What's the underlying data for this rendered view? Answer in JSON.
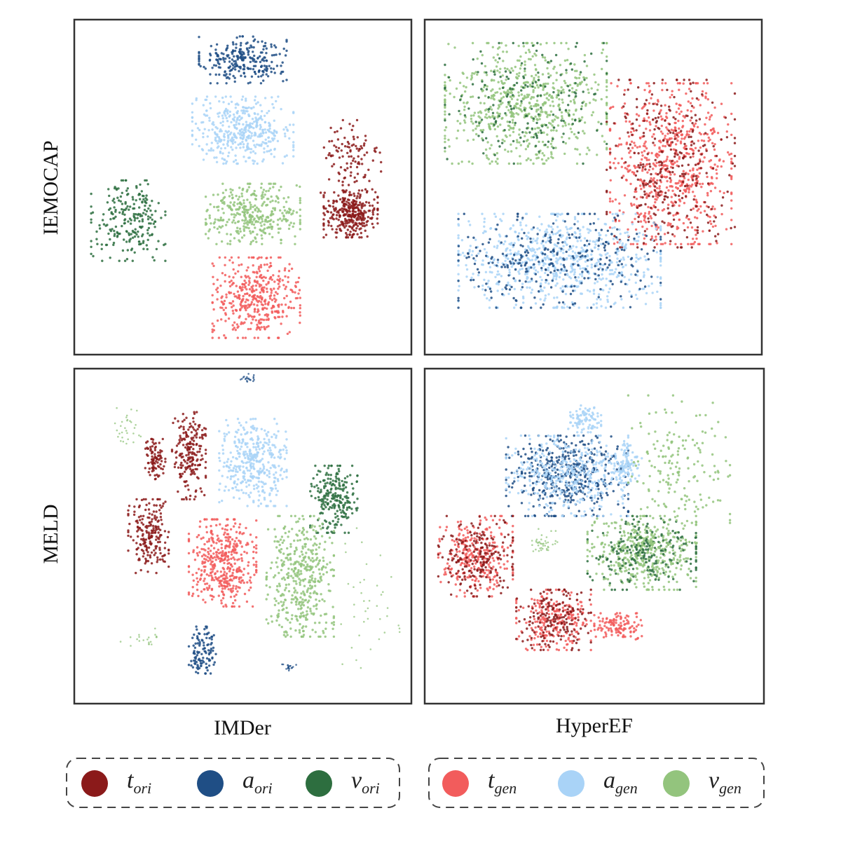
{
  "chart_data": {
    "type": "scatter",
    "title": "",
    "xlabel": "",
    "ylabel": "",
    "row_labels": [
      "IEMOCAP",
      "MELD"
    ],
    "column_labels": [
      "IMDer",
      "HyperEF"
    ],
    "legend_groups": [
      {
        "items": [
          {
            "base": "t",
            "sub": "ori",
            "color": "#8b1a1a"
          },
          {
            "base": "a",
            "sub": "ori",
            "color": "#1f4e85"
          },
          {
            "base": "v",
            "sub": "ori",
            "color": "#2d6e3f"
          }
        ]
      },
      {
        "items": [
          {
            "base": "t",
            "sub": "gen",
            "color": "#f25c5c"
          },
          {
            "base": "a",
            "sub": "gen",
            "color": "#a9d3f7"
          },
          {
            "base": "v",
            "sub": "gen",
            "color": "#93c47d"
          }
        ]
      }
    ],
    "axis_range": {
      "x": [
        0,
        1
      ],
      "y": [
        0,
        1
      ]
    },
    "grid": false,
    "legend_position": "bottom",
    "panels": [
      {
        "row": "IEMOCAP",
        "column": "IMDer",
        "clusters": [
          {
            "series": "a_ori",
            "cx": 0.5,
            "cy": 0.88,
            "rx": 0.13,
            "ry": 0.07,
            "n": 260
          },
          {
            "series": "a_gen",
            "cx": 0.5,
            "cy": 0.67,
            "rx": 0.15,
            "ry": 0.1,
            "n": 420
          },
          {
            "series": "v_gen",
            "cx": 0.53,
            "cy": 0.42,
            "rx": 0.14,
            "ry": 0.09,
            "n": 360
          },
          {
            "series": "t_gen",
            "cx": 0.54,
            "cy": 0.17,
            "rx": 0.13,
            "ry": 0.12,
            "n": 420
          },
          {
            "series": "t_ori",
            "cx": 0.82,
            "cy": 0.42,
            "rx": 0.08,
            "ry": 0.07,
            "n": 320
          },
          {
            "series": "t_ori",
            "cx": 0.82,
            "cy": 0.58,
            "rx": 0.09,
            "ry": 0.12,
            "n": 110
          },
          {
            "series": "v_ori",
            "cx": 0.16,
            "cy": 0.4,
            "rx": 0.11,
            "ry": 0.12,
            "n": 230
          }
        ]
      },
      {
        "row": "IEMOCAP",
        "column": "HyperEF",
        "clusters": [
          {
            "series": "v_gen",
            "cx": 0.3,
            "cy": 0.75,
            "rx": 0.24,
            "ry": 0.18,
            "n": 700
          },
          {
            "series": "v_ori",
            "cx": 0.3,
            "cy": 0.75,
            "rx": 0.24,
            "ry": 0.18,
            "n": 180
          },
          {
            "series": "t_gen",
            "cx": 0.73,
            "cy": 0.57,
            "rx": 0.18,
            "ry": 0.24,
            "n": 700
          },
          {
            "series": "t_ori",
            "cx": 0.73,
            "cy": 0.57,
            "rx": 0.19,
            "ry": 0.25,
            "n": 300
          },
          {
            "series": "a_gen",
            "cx": 0.4,
            "cy": 0.28,
            "rx": 0.3,
            "ry": 0.14,
            "n": 750
          },
          {
            "series": "a_ori",
            "cx": 0.4,
            "cy": 0.28,
            "rx": 0.3,
            "ry": 0.14,
            "n": 300
          }
        ]
      },
      {
        "row": "MELD",
        "column": "IMDer",
        "clusters": [
          {
            "series": "a_gen",
            "cx": 0.53,
            "cy": 0.72,
            "rx": 0.1,
            "ry": 0.13,
            "n": 380
          },
          {
            "series": "t_ori",
            "cx": 0.34,
            "cy": 0.74,
            "rx": 0.05,
            "ry": 0.13,
            "n": 200
          },
          {
            "series": "t_ori",
            "cx": 0.24,
            "cy": 0.73,
            "rx": 0.03,
            "ry": 0.06,
            "n": 90
          },
          {
            "series": "t_ori",
            "cx": 0.22,
            "cy": 0.5,
            "rx": 0.06,
            "ry": 0.11,
            "n": 200
          },
          {
            "series": "t_gen",
            "cx": 0.44,
            "cy": 0.42,
            "rx": 0.1,
            "ry": 0.13,
            "n": 420
          },
          {
            "series": "v_ori",
            "cx": 0.77,
            "cy": 0.61,
            "rx": 0.07,
            "ry": 0.1,
            "n": 230
          },
          {
            "series": "v_gen",
            "cx": 0.67,
            "cy": 0.38,
            "rx": 0.1,
            "ry": 0.18,
            "n": 430
          },
          {
            "series": "a_ori",
            "cx": 0.38,
            "cy": 0.16,
            "rx": 0.04,
            "ry": 0.07,
            "n": 110
          },
          {
            "series": "a_ori",
            "cx": 0.52,
            "cy": 0.97,
            "rx": 0.02,
            "ry": 0.01,
            "n": 20
          },
          {
            "series": "a_ori",
            "cx": 0.64,
            "cy": 0.11,
            "rx": 0.02,
            "ry": 0.01,
            "n": 18
          },
          {
            "series": "v_gen",
            "cx": 0.16,
            "cy": 0.82,
            "rx": 0.04,
            "ry": 0.06,
            "n": 30
          },
          {
            "series": "v_gen",
            "cx": 0.2,
            "cy": 0.19,
            "rx": 0.05,
            "ry": 0.03,
            "n": 20
          },
          {
            "series": "v_gen",
            "cx": 0.85,
            "cy": 0.3,
            "rx": 0.12,
            "ry": 0.2,
            "n": 40
          }
        ]
      },
      {
        "row": "MELD",
        "column": "HyperEF",
        "clusters": [
          {
            "series": "a_ori",
            "cx": 0.42,
            "cy": 0.68,
            "rx": 0.18,
            "ry": 0.12,
            "n": 450
          },
          {
            "series": "a_gen",
            "cx": 0.42,
            "cy": 0.68,
            "rx": 0.18,
            "ry": 0.12,
            "n": 400
          },
          {
            "series": "a_gen",
            "cx": 0.47,
            "cy": 0.85,
            "rx": 0.05,
            "ry": 0.04,
            "n": 90
          },
          {
            "series": "a_gen",
            "cx": 0.59,
            "cy": 0.72,
            "rx": 0.05,
            "ry": 0.06,
            "n": 100
          },
          {
            "series": "v_gen",
            "cx": 0.64,
            "cy": 0.45,
            "rx": 0.16,
            "ry": 0.11,
            "n": 450
          },
          {
            "series": "v_ori",
            "cx": 0.64,
            "cy": 0.45,
            "rx": 0.16,
            "ry": 0.11,
            "n": 200
          },
          {
            "series": "t_gen",
            "cx": 0.15,
            "cy": 0.44,
            "rx": 0.11,
            "ry": 0.12,
            "n": 280
          },
          {
            "series": "t_ori",
            "cx": 0.15,
            "cy": 0.44,
            "rx": 0.11,
            "ry": 0.12,
            "n": 200
          },
          {
            "series": "t_gen",
            "cx": 0.38,
            "cy": 0.25,
            "rx": 0.11,
            "ry": 0.09,
            "n": 220
          },
          {
            "series": "t_ori",
            "cx": 0.38,
            "cy": 0.25,
            "rx": 0.11,
            "ry": 0.09,
            "n": 180
          },
          {
            "series": "t_gen",
            "cx": 0.57,
            "cy": 0.23,
            "rx": 0.07,
            "ry": 0.04,
            "n": 120
          },
          {
            "series": "v_gen",
            "cx": 0.75,
            "cy": 0.7,
            "rx": 0.15,
            "ry": 0.22,
            "n": 180
          },
          {
            "series": "v_gen",
            "cx": 0.35,
            "cy": 0.48,
            "rx": 0.04,
            "ry": 0.03,
            "n": 40
          }
        ]
      }
    ]
  }
}
